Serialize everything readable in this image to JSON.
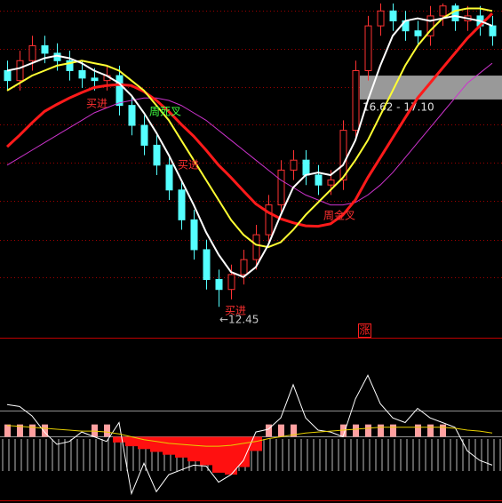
{
  "chart_data": [
    {
      "type": "candlestick",
      "ylim": [
        11.83,
        18.62
      ],
      "yticks": [
        18.4,
        17.64,
        16.87,
        16.12,
        15.35,
        14.58,
        13.8,
        13.05
      ],
      "grid": true,
      "grid_color": "#a00000",
      "up_color": "#ff3232",
      "down_color": "#54ffff",
      "open": [
        17.2,
        17.0,
        17.4,
        17.7,
        17.55,
        17.4,
        17.2,
        17.05,
        17.0,
        17.1,
        16.5,
        16.1,
        15.7,
        15.3,
        14.8,
        14.2,
        13.6,
        13.0,
        12.8,
        13.1,
        13.4,
        13.9,
        14.5,
        15.2,
        15.4,
        15.1,
        14.9,
        15.0,
        16.0,
        17.2,
        18.1,
        18.4,
        18.2,
        18.0,
        17.9,
        18.3,
        18.5,
        18.2,
        18.3,
        18.1
      ],
      "high": [
        17.4,
        17.6,
        17.9,
        17.9,
        17.75,
        17.6,
        17.4,
        17.25,
        17.3,
        17.3,
        16.7,
        16.3,
        15.9,
        15.5,
        15.0,
        14.4,
        13.8,
        13.2,
        13.3,
        13.6,
        14.1,
        14.7,
        15.4,
        15.6,
        15.6,
        15.3,
        15.2,
        16.2,
        17.4,
        18.3,
        18.55,
        18.55,
        18.4,
        18.2,
        18.5,
        18.55,
        18.55,
        18.5,
        18.5,
        18.3
      ],
      "low": [
        16.8,
        16.8,
        17.2,
        17.35,
        17.2,
        17.0,
        16.85,
        16.8,
        16.8,
        16.3,
        15.9,
        15.5,
        15.1,
        14.6,
        14.0,
        13.4,
        12.8,
        12.45,
        12.6,
        12.9,
        13.2,
        13.7,
        14.3,
        15.0,
        14.9,
        14.7,
        14.7,
        14.8,
        15.8,
        17.0,
        17.9,
        18.0,
        17.8,
        17.7,
        17.7,
        18.1,
        18.0,
        18.0,
        17.9,
        17.7
      ],
      "close": [
        17.0,
        17.4,
        17.7,
        17.55,
        17.4,
        17.2,
        17.05,
        17.0,
        17.1,
        16.5,
        16.1,
        15.7,
        15.3,
        14.8,
        14.2,
        13.6,
        13.0,
        12.8,
        13.1,
        13.4,
        13.9,
        14.5,
        15.2,
        15.4,
        15.1,
        14.9,
        15.0,
        16.0,
        17.2,
        18.1,
        18.4,
        18.2,
        18.0,
        17.9,
        18.3,
        18.5,
        18.2,
        18.3,
        18.1,
        17.9
      ],
      "lines": [
        {
          "color": "#cc33cc",
          "width": 1,
          "values": [
            15.3,
            15.45,
            15.6,
            15.75,
            15.9,
            16.05,
            16.2,
            16.35,
            16.45,
            16.55,
            16.6,
            16.65,
            16.65,
            16.6,
            16.5,
            16.35,
            16.2,
            16.0,
            15.8,
            15.6,
            15.4,
            15.2,
            15.0,
            14.85,
            14.7,
            14.6,
            14.5,
            14.5,
            14.55,
            14.7,
            14.9,
            15.15,
            15.45,
            15.75,
            16.05,
            16.35,
            16.65,
            16.95,
            17.15,
            17.35
          ]
        },
        {
          "color": "#ff1a1a",
          "width": 3,
          "values": [
            15.67,
            15.9,
            16.15,
            16.38,
            16.52,
            16.65,
            16.76,
            16.86,
            16.9,
            16.92,
            16.9,
            16.78,
            16.6,
            16.38,
            16.12,
            15.88,
            15.6,
            15.3,
            15.05,
            14.78,
            14.52,
            14.35,
            14.22,
            14.14,
            14.08,
            14.07,
            14.12,
            14.3,
            14.6,
            15.05,
            15.45,
            15.85,
            16.25,
            16.65,
            16.95,
            17.25,
            17.55,
            17.85,
            18.1,
            18.35
          ]
        },
        {
          "color": "#ffff33",
          "width": 2,
          "values": [
            16.8,
            16.95,
            17.1,
            17.2,
            17.3,
            17.35,
            17.4,
            17.35,
            17.3,
            17.2,
            17.0,
            16.8,
            16.5,
            16.2,
            15.8,
            15.4,
            15.0,
            14.6,
            14.2,
            13.9,
            13.7,
            13.65,
            13.75,
            14.0,
            14.3,
            14.55,
            14.8,
            15.05,
            15.4,
            15.8,
            16.3,
            16.8,
            17.3,
            17.7,
            18.0,
            18.25,
            18.4,
            18.45,
            18.45,
            18.4
          ]
        },
        {
          "color": "#ffffff",
          "width": 2,
          "values": [
            17.2,
            17.25,
            17.35,
            17.45,
            17.5,
            17.45,
            17.35,
            17.2,
            17.1,
            16.95,
            16.7,
            16.35,
            15.95,
            15.5,
            15.0,
            14.5,
            13.95,
            13.5,
            13.15,
            13.05,
            13.25,
            13.7,
            14.3,
            14.85,
            15.1,
            15.15,
            15.1,
            15.3,
            15.8,
            16.6,
            17.3,
            17.9,
            18.2,
            18.25,
            18.2,
            18.25,
            18.3,
            18.25,
            18.2,
            18.1
          ]
        }
      ],
      "band": {
        "low": 16.62,
        "high": 17.1,
        "label": "16.62 - 17.10",
        "color": "#999999"
      },
      "annotations": [
        {
          "text": "买进",
          "color": "#ff3030"
        },
        {
          "text": "周死叉",
          "color": "#40ff40"
        },
        {
          "text": "买进",
          "color": "#ff3030"
        },
        {
          "text": "周金叉",
          "color": "#ff3030"
        },
        {
          "text": "买进",
          "color": "#ff3030"
        },
        {
          "text": "←12.45",
          "color": "#c8c8c8"
        }
      ],
      "signal": {
        "text": "涨",
        "color": "#ff2020"
      }
    },
    {
      "type": "oscillator",
      "ylim": [
        -70,
        100
      ],
      "hlines": [
        0,
        28
      ],
      "hline_color": "#909090",
      "pos_color": "#ffa0a0",
      "neg_color": "#ff1010",
      "histogram": [
        13,
        13,
        13,
        13,
        0,
        0,
        0,
        13,
        13,
        -6,
        -10,
        -13,
        -16,
        -19,
        -22,
        -26,
        -30,
        -38,
        -40,
        -32,
        -15,
        13,
        13,
        13,
        0,
        0,
        0,
        13,
        13,
        13,
        13,
        13,
        0,
        13,
        13,
        13,
        0,
        0,
        0,
        0
      ],
      "lines": [
        {
          "color": "#ffffff",
          "width": 1,
          "values": [
            34,
            32,
            22,
            5,
            -8,
            -5,
            5,
            0,
            -5,
            15,
            -60,
            -28,
            -58,
            -40,
            -35,
            -30,
            -31,
            -48,
            -40,
            -25,
            5,
            8,
            20,
            55,
            20,
            7,
            5,
            0,
            40,
            65,
            35,
            20,
            15,
            30,
            20,
            15,
            10,
            -15,
            -25,
            -30
          ]
        },
        {
          "color": "#e8d000",
          "width": 1,
          "values": [
            12,
            11,
            10,
            9,
            8,
            7,
            6,
            6,
            5,
            3,
            0,
            -3,
            -5,
            -7,
            -8,
            -9,
            -10,
            -10,
            -9,
            -7,
            -5,
            -2,
            0,
            2,
            4,
            5,
            6,
            7,
            8,
            9,
            10,
            10,
            10,
            10,
            10,
            10,
            9,
            7,
            6,
            4
          ]
        }
      ]
    }
  ]
}
